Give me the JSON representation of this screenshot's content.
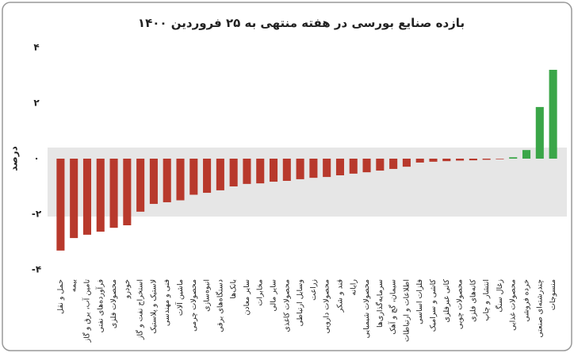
{
  "chart_data": {
    "type": "bar",
    "title": "بازده صنایع بورسی در هفته منتهی به ۲۵ فروردین ۱۴۰۰",
    "y_label": "درصد",
    "categories": [
      "حمل و نقل",
      "بیمه",
      "تامین آب، برق و گاز",
      "فرآورده‌های نفتی",
      "محصولات فلزی",
      "خودرو",
      "استخراج نفت و گاز",
      "لاستیک و پلاستیک",
      "فنی و مهندسی",
      "ماشین آلات",
      "محصولات چرمی",
      "انبوه‌سازی",
      "دستگاه‌های برقی",
      "بانک‌ها",
      "سایر معادن",
      "مخابرات",
      "سایر مالی",
      "محصولات کاغذی",
      "وسایل ارتباطی",
      "زراعت",
      "محصولات دارویی",
      "قند و شکر",
      "رایانه",
      "محصولات شیمیایی",
      "سرمایه‌گذاری‌ها",
      "سیمان، گچ و آهک",
      "اطلاعات و ارتباطات",
      "فلزات اساسی",
      "کاشی و سرامیک",
      "کانی غیرفلزی",
      "محصولات چوبی",
      "کانه‌های فلزی",
      "انتشار و چاپ",
      "زغال سنگ",
      "محصولات غذایی",
      "خرده فروشی",
      "چندرشته‌ای صنعتی",
      "منسوجات"
    ],
    "values": [
      -3.31,
      -2.86,
      -2.74,
      -2.63,
      -2.49,
      -2.4,
      -1.91,
      -1.63,
      -1.57,
      -1.5,
      -1.3,
      -1.23,
      -1.14,
      -1.0,
      -0.91,
      -0.89,
      -0.83,
      -0.8,
      -0.74,
      -0.69,
      -0.66,
      -0.6,
      -0.54,
      -0.49,
      -0.43,
      -0.37,
      -0.29,
      -0.14,
      -0.11,
      -0.09,
      -0.07,
      -0.06,
      -0.04,
      -0.02,
      0.05,
      0.31,
      1.86,
      3.2
    ],
    "negative_color": "#b8392c",
    "positive_color": "#3aa648",
    "ylim": [
      -4,
      4
    ],
    "yticks": [
      {
        "value": 4,
        "label": "۴"
      },
      {
        "value": 2,
        "label": "۲"
      },
      {
        "value": 0,
        "label": "۰"
      },
      {
        "value": -2,
        "label": "-۲"
      },
      {
        "value": -4,
        "label": "-۴"
      }
    ]
  }
}
